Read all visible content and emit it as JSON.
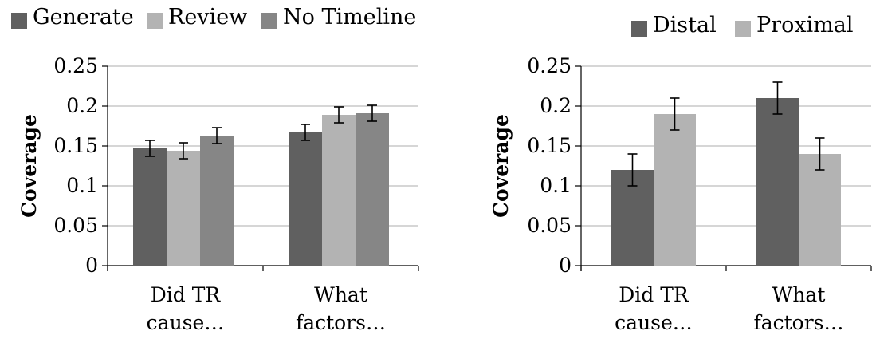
{
  "chart_data": [
    {
      "type": "bar",
      "title": "",
      "xlabel": "",
      "ylabel": "Coverage",
      "ylim": [
        0,
        0.25
      ],
      "yticks": [
        0,
        0.05,
        0.1,
        0.15,
        0.2,
        0.25
      ],
      "ytick_labels": [
        "0",
        "0.05",
        "0.1",
        "0.15",
        "0.2",
        "0.25"
      ],
      "grid": true,
      "legend_position": "top",
      "categories": [
        [
          "Did TR",
          "cause…"
        ],
        [
          "What",
          "factors…"
        ]
      ],
      "series": [
        {
          "name": "Generate",
          "color": "#606060",
          "values": [
            0.147,
            0.167
          ],
          "error": [
            0.01,
            0.01
          ]
        },
        {
          "name": "Review",
          "color": "#b3b3b3",
          "values": [
            0.144,
            0.189
          ],
          "error": [
            0.01,
            0.01
          ]
        },
        {
          "name": "No Timeline",
          "color": "#868686",
          "values": [
            0.163,
            0.191
          ],
          "error": [
            0.01,
            0.01
          ]
        }
      ]
    },
    {
      "type": "bar",
      "title": "",
      "xlabel": "",
      "ylabel": "Coverage",
      "ylim": [
        0,
        0.25
      ],
      "yticks": [
        0,
        0.05,
        0.1,
        0.15,
        0.2,
        0.25
      ],
      "ytick_labels": [
        "0",
        "0.05",
        "0.1",
        "0.15",
        "0.2",
        "0.25"
      ],
      "grid": true,
      "legend_position": "top-right",
      "categories": [
        [
          "Did TR",
          "cause…"
        ],
        [
          "What",
          "factors…"
        ]
      ],
      "series": [
        {
          "name": "Distal",
          "color": "#606060",
          "values": [
            0.12,
            0.21
          ],
          "error": [
            0.02,
            0.02
          ]
        },
        {
          "name": "Proximal",
          "color": "#b3b3b3",
          "values": [
            0.19,
            0.14
          ],
          "error": [
            0.02,
            0.02
          ]
        }
      ]
    }
  ]
}
